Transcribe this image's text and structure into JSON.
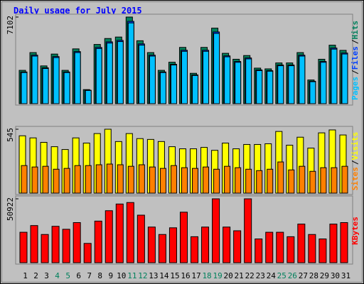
{
  "chart_data": [
    {
      "type": "bar",
      "title": "Daily usage for July 2015",
      "ylim": [
        0,
        7102
      ],
      "yticks": [
        7102
      ],
      "legend_separator": "/",
      "series": [
        {
          "name": "Hits",
          "color": "#00805c",
          "values": [
            2732,
            4188,
            3096,
            4067,
            2732,
            4492,
            1153,
            4856,
            5342,
            5463,
            7102,
            5160,
            4188,
            2732,
            3399,
            4613,
            2489,
            4613,
            6192,
            4128,
            3642,
            3946,
            2914,
            2853,
            3339,
            3339,
            4188,
            1942,
            3642,
            4795,
            4371
          ]
        },
        {
          "name": "Files",
          "color": "#0040ff",
          "values": [
            2600,
            3980,
            2940,
            3860,
            2600,
            4270,
            1100,
            4610,
            5070,
            5190,
            6750,
            4900,
            3980,
            2600,
            3230,
            4380,
            2360,
            4380,
            5880,
            3920,
            3460,
            3750,
            2770,
            2710,
            3170,
            3170,
            3980,
            1840,
            3460,
            4560,
            4150
          ]
        },
        {
          "name": "Pages",
          "color": "#00c0ff",
          "values": [
            2550,
            3900,
            2880,
            3780,
            2550,
            4190,
            1080,
            4520,
            4970,
            5090,
            6620,
            4800,
            3900,
            2550,
            3170,
            4290,
            2310,
            4290,
            5760,
            3840,
            3390,
            3670,
            2710,
            2660,
            3110,
            3110,
            3900,
            1800,
            3390,
            4470,
            4070
          ]
        }
      ]
    },
    {
      "type": "bar",
      "ylim": [
        0,
        545
      ],
      "yticks": [
        545
      ],
      "legend_separator": "/",
      "series": [
        {
          "name": "Visits",
          "color": "#ffff00",
          "values": [
            489,
            471,
            433,
            396,
            372,
            471,
            427,
            508,
            545,
            440,
            508,
            465,
            458,
            440,
            396,
            378,
            378,
            390,
            365,
            427,
            378,
            415,
            415,
            421,
            526,
            409,
            477,
            384,
            514,
            539,
            496
          ]
        },
        {
          "name": "Sites",
          "color": "#ff8000",
          "values": [
            235,
            223,
            229,
            204,
            211,
            235,
            235,
            242,
            248,
            242,
            229,
            242,
            223,
            211,
            235,
            217,
            211,
            223,
            204,
            229,
            217,
            204,
            192,
            204,
            266,
            198,
            229,
            186,
            217,
            217,
            229
          ]
        }
      ]
    },
    {
      "type": "bar",
      "ylim": [
        0,
        50922
      ],
      "yticks": [
        50922
      ],
      "series": [
        {
          "name": "KBytes",
          "color": "#ff0000",
          "values": [
            24276,
            29606,
            22500,
            29013,
            26645,
            31974,
            15395,
            33158,
            41448,
            46777,
            47961,
            37895,
            28421,
            22500,
            27829,
            40263,
            20724,
            28421,
            50922,
            28421,
            25461,
            50922,
            18948,
            24276,
            24276,
            20724,
            30790,
            22500,
            18948,
            30790,
            31974
          ]
        }
      ],
      "categories": [
        "1",
        "2",
        "3",
        "4",
        "5",
        "6",
        "7",
        "8",
        "9",
        "10",
        "11",
        "12",
        "13",
        "14",
        "15",
        "16",
        "17",
        "18",
        "19",
        "20",
        "21",
        "22",
        "23",
        "24",
        "25",
        "26",
        "27",
        "28",
        "29",
        "30",
        "31"
      ],
      "category_colors": [
        "#000000",
        "#000000",
        "#000000",
        "#00805c",
        "#00805c",
        "#000000",
        "#000000",
        "#000000",
        "#000000",
        "#000000",
        "#00805c",
        "#00805c",
        "#000000",
        "#000000",
        "#000000",
        "#000000",
        "#000000",
        "#00805c",
        "#00805c",
        "#000000",
        "#000000",
        "#000000",
        "#000000",
        "#000000",
        "#00805c",
        "#00805c",
        "#000000",
        "#000000",
        "#000000",
        "#000000",
        "#000000"
      ]
    }
  ]
}
